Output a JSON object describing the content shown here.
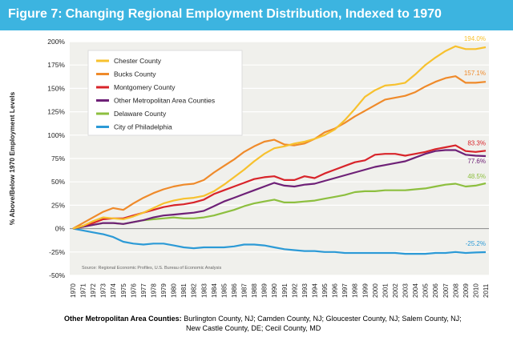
{
  "figure": {
    "label": "Figure 7:",
    "title": "Changing Regional Employment Distribution, Indexed to 1970"
  },
  "footnote": {
    "lead": "Other Metropolitan Area Counties:",
    "line1": "Burlington County, NJ; Camden County, NJ; Gloucester County, NJ; Salem County, NJ;",
    "line2": "New Castle County, DE; Cecil County, MD"
  },
  "colors": {
    "header": "#3cb4e0",
    "plot_bg": "#f0f0ec",
    "chester": "#f7c12e",
    "bucks": "#ef8a2a",
    "montgomery": "#d8242a",
    "other": "#6e2177",
    "delaware": "#8dbf3f",
    "philadelphia": "#2c9ad6"
  },
  "chart_data": {
    "type": "line",
    "ylabel": "% Above/Below 1970 Employment Levels",
    "xlabel": "",
    "ylim": [
      -50,
      200
    ],
    "yticks": [
      200,
      175,
      150,
      125,
      100,
      75,
      50,
      25,
      0,
      -25,
      -50
    ],
    "ytick_labels": [
      "200%",
      "175%",
      "150%",
      "125%",
      "100%",
      "75%",
      "50%",
      "25%",
      "0%",
      "-25%",
      "-50%"
    ],
    "grid": true,
    "legend_position": "top-left",
    "source": "Source:  Regional Economic Profiles, U.S. Bureau of Economic Analysis",
    "x": [
      "1970",
      "1971",
      "1972",
      "1973",
      "1974",
      "1975",
      "1976",
      "1977",
      "1978",
      "1979",
      "1980",
      "1981",
      "1982",
      "1983",
      "1984",
      "1985",
      "1986",
      "1987",
      "1988",
      "1989",
      "1990",
      "1991",
      "1992",
      "1993",
      "1994",
      "1995",
      "1996",
      "1997",
      "1998",
      "1999",
      "2000",
      "2001",
      "2002",
      "2003",
      "2004",
      "2005",
      "2006",
      "2007",
      "2008",
      "2009",
      "2010",
      "2011"
    ],
    "series": [
      {
        "name": "Chester County",
        "color": "#f7c12e",
        "end_label": "194.0%",
        "values": [
          0,
          3,
          8,
          12,
          11,
          10,
          13,
          17,
          22,
          27,
          30,
          32,
          33,
          35,
          40,
          47,
          55,
          63,
          72,
          80,
          86,
          88,
          91,
          93,
          96,
          100,
          106,
          116,
          128,
          141,
          148,
          153,
          154,
          156,
          165,
          175,
          183,
          190,
          195,
          192,
          192,
          194
        ]
      },
      {
        "name": "Bucks County",
        "color": "#ef8a2a",
        "end_label": "157.1%",
        "values": [
          0,
          6,
          12,
          18,
          22,
          20,
          27,
          33,
          38,
          42,
          45,
          47,
          48,
          52,
          60,
          67,
          74,
          82,
          88,
          93,
          95,
          90,
          89,
          91,
          96,
          103,
          107,
          113,
          120,
          126,
          132,
          138,
          140,
          142,
          146,
          152,
          157,
          161,
          163,
          156,
          156,
          157
        ]
      },
      {
        "name": "Montgomery County",
        "color": "#d8242a",
        "end_label": "83.3%",
        "values": [
          0,
          3,
          6,
          10,
          11,
          11,
          14,
          17,
          20,
          23,
          25,
          26,
          28,
          31,
          37,
          41,
          45,
          49,
          53,
          55,
          56,
          52,
          52,
          56,
          54,
          59,
          63,
          67,
          71,
          73,
          79,
          80,
          80,
          78,
          80,
          82,
          85,
          87,
          89,
          83,
          82,
          83.3
        ]
      },
      {
        "name": "Other Metropolitan Area Counties",
        "color": "#6e2177",
        "end_label": "77.6%",
        "values": [
          0,
          2,
          4,
          6,
          6,
          5,
          7,
          9,
          12,
          14,
          15,
          16,
          17,
          19,
          24,
          29,
          33,
          37,
          41,
          45,
          49,
          46,
          45,
          47,
          48,
          51,
          54,
          57,
          60,
          63,
          66,
          68,
          70,
          72,
          76,
          80,
          83,
          84,
          84,
          79,
          78,
          77.6
        ]
      },
      {
        "name": "Delaware County",
        "color": "#8dbf3f",
        "end_label": "48.5%",
        "values": [
          0,
          2,
          4,
          6,
          6,
          5,
          7,
          9,
          10,
          11,
          12,
          11,
          11,
          12,
          14,
          17,
          20,
          24,
          27,
          29,
          31,
          28,
          28,
          29,
          30,
          32,
          34,
          36,
          39,
          40,
          40,
          41,
          41,
          41,
          42,
          43,
          45,
          47,
          48,
          45,
          46,
          48.5
        ]
      },
      {
        "name": "City of Philadelphia",
        "color": "#2c9ad6",
        "end_label": "-25.2%",
        "values": [
          0,
          -2,
          -4,
          -6,
          -9,
          -14,
          -16,
          -17,
          -16,
          -16,
          -18,
          -20,
          -21,
          -20,
          -20,
          -20,
          -19,
          -17,
          -17,
          -18,
          -20,
          -22,
          -23,
          -24,
          -24,
          -25,
          -25,
          -26,
          -26,
          -26,
          -26,
          -26,
          -26,
          -27,
          -27,
          -27,
          -26,
          -26,
          -25,
          -26,
          -25.5,
          -25.2
        ]
      }
    ]
  }
}
